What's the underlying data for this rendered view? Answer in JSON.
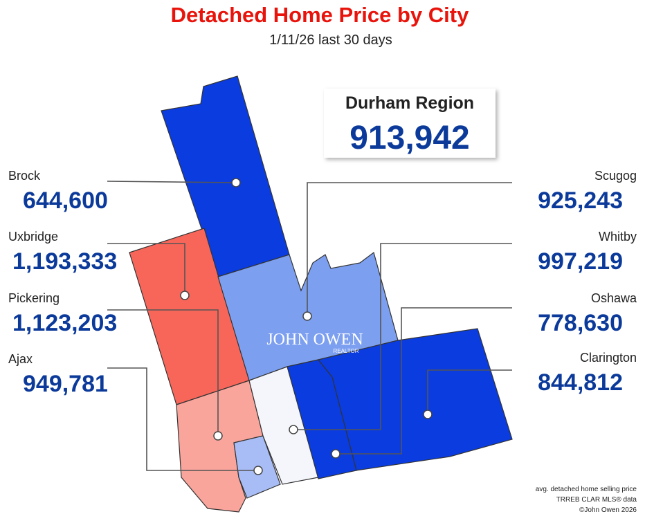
{
  "title": "Detached Home Price by City",
  "subtitle": "1/11/26  last 30 days",
  "region": {
    "name": "Durham Region",
    "price": "913,942"
  },
  "logo": {
    "name": "JOHN OWEN",
    "sub": "REALTOR"
  },
  "cities": [
    {
      "name": "Brock",
      "price": "644,600",
      "color": "#0a3ce0"
    },
    {
      "name": "Uxbridge",
      "price": "1,193,333",
      "color": "#f8665a"
    },
    {
      "name": "Pickering",
      "price": "1,123,203",
      "color": "#f9a59c"
    },
    {
      "name": "Ajax",
      "price": "949,781",
      "color": "#a8bdf6"
    },
    {
      "name": "Scugog",
      "price": "925,243",
      "color": "#7c9ff0"
    },
    {
      "name": "Whitby",
      "price": "997,219",
      "color": "#f4f6fb"
    },
    {
      "name": "Oshawa",
      "price": "778,630",
      "color": "#0a3ce0"
    },
    {
      "name": "Clarington",
      "price": "844,812",
      "color": "#0a3ce0"
    }
  ],
  "footnotes": [
    "avg. detached home selling price",
    "TRREB CLAR MLS® data",
    "©John Owen 2026"
  ]
}
